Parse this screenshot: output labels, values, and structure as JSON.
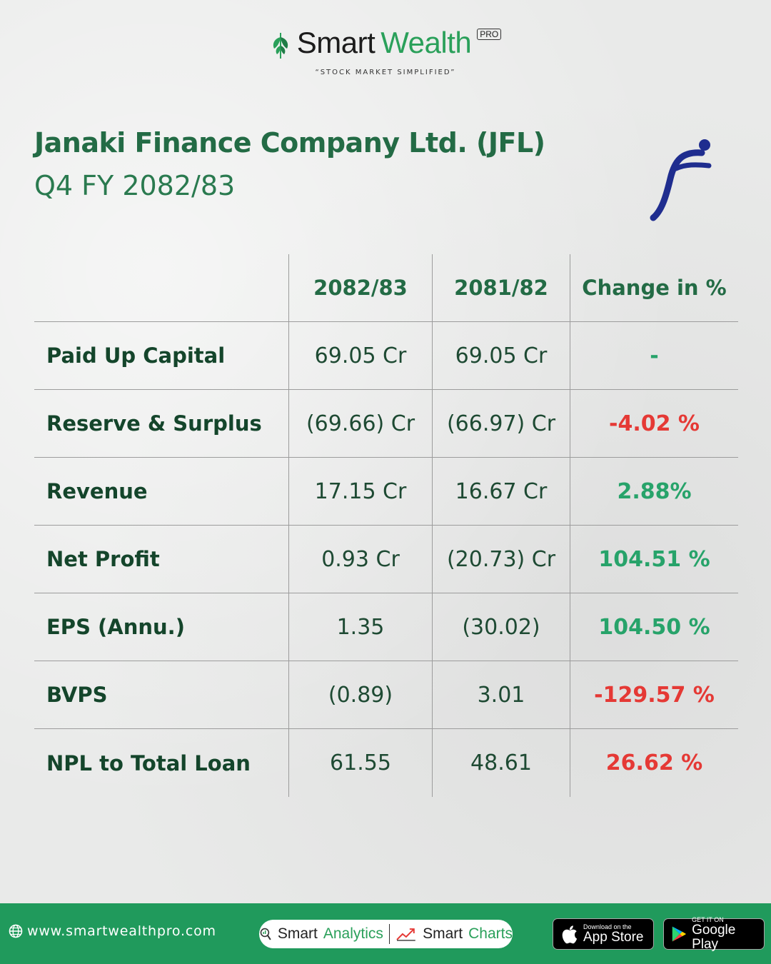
{
  "brand": {
    "name_part1": "Smart",
    "name_part2": "Wealth",
    "badge": "PRO",
    "tagline": "“STOCK MARKET SIMPLIFIED”",
    "accent_color": "#2aa05a"
  },
  "report": {
    "title": "Janaki Finance Company Ltd. (JFL)",
    "subtitle": "Q4 FY 2082/83"
  },
  "table": {
    "headers": [
      "",
      "2082/83",
      "2081/82",
      "Change in %"
    ],
    "rows": [
      {
        "label": "Paid Up Capital",
        "current": "69.05 Cr",
        "previous": "69.05 Cr",
        "change": "-",
        "trend": "neutral"
      },
      {
        "label": "Reserve & Surplus",
        "current": "(69.66) Cr",
        "previous": "(66.97) Cr",
        "change": "-4.02 %",
        "trend": "negative"
      },
      {
        "label": "Revenue",
        "current": "17.15 Cr",
        "previous": "16.67 Cr",
        "change": "2.88%",
        "trend": "positive"
      },
      {
        "label": "Net Profit",
        "current": "0.93 Cr",
        "previous": "(20.73) Cr",
        "change": "104.51 %",
        "trend": "positive"
      },
      {
        "label": "EPS (Annu.)",
        "current": "1.35",
        "previous": "(30.02)",
        "change": "104.50 %",
        "trend": "positive"
      },
      {
        "label": "BVPS",
        "current": "(0.89)",
        "previous": "3.01",
        "change": "-129.57 %",
        "trend": "negative"
      },
      {
        "label": "NPL to Total Loan",
        "current": "61.55",
        "previous": "48.61",
        "change": "26.62 %",
        "trend": "negative"
      }
    ],
    "colors": {
      "positive": "#27a36a",
      "negative": "#e53935"
    }
  },
  "footer": {
    "website": "www.smartwealthpro.com",
    "pill": {
      "a1": "Smart",
      "a2": "Analytics",
      "b1": "Smart",
      "b2": "Charts"
    },
    "appstore": {
      "small": "Download on the",
      "big": "App Store"
    },
    "googleplay": {
      "small": "GET IT ON",
      "big": "Google Play"
    },
    "background": "#209a5c"
  }
}
